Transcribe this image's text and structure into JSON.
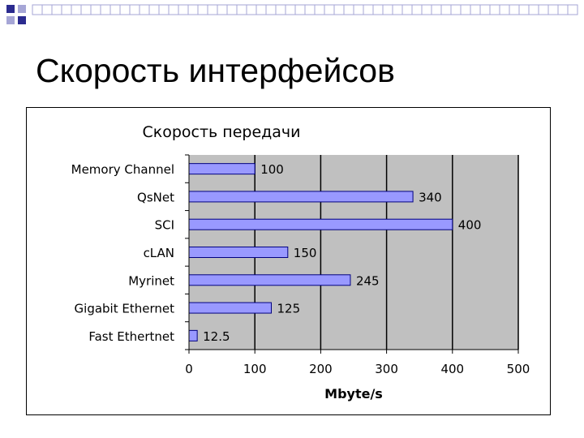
{
  "slide": {
    "title": "Скорость интерфейсов"
  },
  "colors": {
    "accent_dark": "#2b2b8f",
    "accent_light": "#a6a6d6",
    "plot_background": "#c0c0c0",
    "bar_fill": "#9999ff",
    "bar_stroke": "#000080"
  },
  "chart_data": {
    "type": "bar",
    "orientation": "horizontal",
    "title": "Скорость передачи",
    "xlabel": "Mbyte/s",
    "ylabel": "",
    "categories": [
      "Memory Channel",
      "QsNet",
      "SCI",
      "cLAN",
      "Myrinet",
      "Gigabit Ethernet",
      "Fast Ethertnet"
    ],
    "values": [
      100,
      340,
      400,
      150,
      245,
      125,
      12.5
    ],
    "value_labels": [
      "100",
      "340",
      "400",
      "150",
      "245",
      "125",
      "12.5"
    ],
    "xlim": [
      0,
      500
    ],
    "xticks": [
      0,
      100,
      200,
      300,
      400,
      500
    ],
    "xtick_labels": [
      "0",
      "100",
      "200",
      "300",
      "400",
      "500"
    ],
    "grid": "vertical",
    "legend": "none"
  }
}
